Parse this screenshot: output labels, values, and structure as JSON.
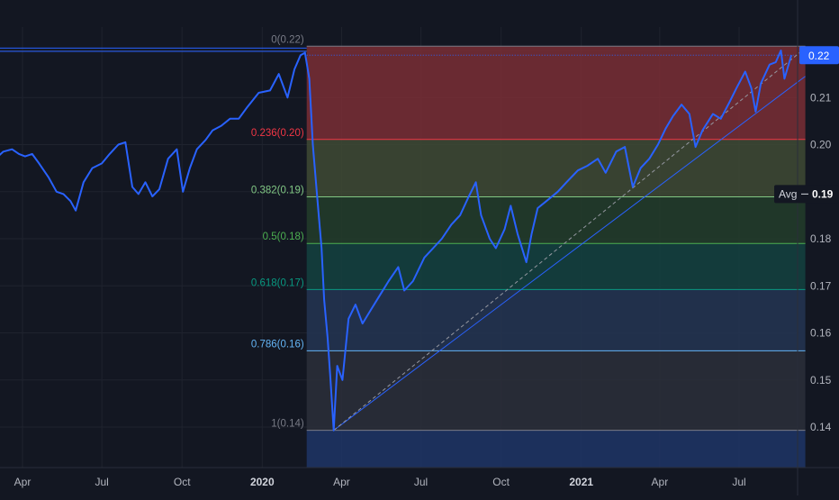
{
  "chart_data": {
    "type": "line",
    "y_axis": {
      "ticks": [
        "0.22",
        "0.21",
        "0.20",
        "0.19",
        "0.18",
        "0.17",
        "0.16",
        "0.15",
        "0.14"
      ],
      "tick_values": [
        0.22,
        0.21,
        0.2,
        0.19,
        0.18,
        0.17,
        0.16,
        0.15,
        0.14
      ],
      "range": [
        0.1325,
        0.2235
      ]
    },
    "x_axis": {
      "ticks": [
        {
          "label": "Apr",
          "date": "2019-04-01",
          "bold": false
        },
        {
          "label": "Jul",
          "date": "2019-07-01",
          "bold": false
        },
        {
          "label": "Oct",
          "date": "2019-10-01",
          "bold": false
        },
        {
          "label": "2020",
          "date": "2020-01-01",
          "bold": true
        },
        {
          "label": "Apr",
          "date": "2020-04-01",
          "bold": false
        },
        {
          "label": "Jul",
          "date": "2020-07-01",
          "bold": false
        },
        {
          "label": "Oct",
          "date": "2020-10-01",
          "bold": false
        },
        {
          "label": "2021",
          "date": "2021-01-01",
          "bold": true
        },
        {
          "label": "Apr",
          "date": "2021-04-01",
          "bold": false
        },
        {
          "label": "Jul",
          "date": "2021-07-01",
          "bold": false
        }
      ]
    },
    "last_price_label": "0.22",
    "last_price": 0.219,
    "avg_label": "Avg",
    "avg_value_label": "0.19",
    "avg_value": 0.1895,
    "fib_levels": [
      {
        "label": "0(0.22)",
        "ratio": 0,
        "value": 0.2209,
        "color": "#787b86",
        "fill": "#7a2e35"
      },
      {
        "label": "0.236(0.20)",
        "ratio": 0.236,
        "value": 0.2011,
        "color": "#f23645",
        "fill": "#3f4a34"
      },
      {
        "label": "0.382(0.19)",
        "ratio": 0.382,
        "value": 0.1889,
        "color": "#81c784",
        "fill": "#233d2a"
      },
      {
        "label": "0.5(0.18)",
        "ratio": 0.5,
        "value": 0.179,
        "color": "#4caf50",
        "fill": "#144240"
      },
      {
        "label": "0.618(0.17)",
        "ratio": 0.618,
        "value": 0.1692,
        "color": "#089981",
        "fill": "#243552"
      },
      {
        "label": "0.786(0.16)",
        "ratio": 0.786,
        "value": 0.1562,
        "color": "#64b5f6",
        "fill": "#2c2f3a"
      },
      {
        "label": "1(0.14)",
        "ratio": 1,
        "value": 0.1393,
        "color": "#787b86",
        "fill": "#1e3566"
      }
    ],
    "series": [
      {
        "color": "#2962ff",
        "points": [
          [
            "2019-01-10",
            0.19
          ],
          [
            "2019-01-20",
            0.192
          ],
          [
            "2019-02-01",
            0.194
          ],
          [
            "2019-02-15",
            0.196
          ],
          [
            "2019-03-01",
            0.197
          ],
          [
            "2019-03-10",
            0.1985
          ],
          [
            "2019-03-20",
            0.199
          ],
          [
            "2019-03-28",
            0.198
          ],
          [
            "2019-04-04",
            0.1975
          ],
          [
            "2019-04-12",
            0.198
          ],
          [
            "2019-04-20",
            0.196
          ],
          [
            "2019-05-01",
            0.193
          ],
          [
            "2019-05-10",
            0.19
          ],
          [
            "2019-05-18",
            0.1895
          ],
          [
            "2019-05-26",
            0.188
          ],
          [
            "2019-06-01",
            0.186
          ],
          [
            "2019-06-10",
            0.192
          ],
          [
            "2019-06-20",
            0.195
          ],
          [
            "2019-07-01",
            0.196
          ],
          [
            "2019-07-10",
            0.198
          ],
          [
            "2019-07-20",
            0.2
          ],
          [
            "2019-07-28",
            0.2005
          ],
          [
            "2019-08-05",
            0.191
          ],
          [
            "2019-08-12",
            0.1895
          ],
          [
            "2019-08-20",
            0.192
          ],
          [
            "2019-08-28",
            0.189
          ],
          [
            "2019-09-05",
            0.1905
          ],
          [
            "2019-09-15",
            0.197
          ],
          [
            "2019-09-25",
            0.199
          ],
          [
            "2019-10-02",
            0.19
          ],
          [
            "2019-10-10",
            0.195
          ],
          [
            "2019-10-18",
            0.199
          ],
          [
            "2019-10-28",
            0.201
          ],
          [
            "2019-11-05",
            0.203
          ],
          [
            "2019-11-15",
            0.204
          ],
          [
            "2019-11-25",
            0.2055
          ],
          [
            "2019-12-05",
            0.2055
          ],
          [
            "2019-12-15",
            0.208
          ],
          [
            "2019-12-28",
            0.211
          ],
          [
            "2020-01-10",
            0.2115
          ],
          [
            "2020-01-20",
            0.215
          ],
          [
            "2020-01-30",
            0.21
          ],
          [
            "2020-02-07",
            0.216
          ],
          [
            "2020-02-14",
            0.219
          ],
          [
            "2020-02-19",
            0.2195
          ],
          [
            "2020-02-24",
            0.214
          ],
          [
            "2020-02-28",
            0.2
          ],
          [
            "2020-03-04",
            0.189
          ],
          [
            "2020-03-09",
            0.178
          ],
          [
            "2020-03-12",
            0.167
          ],
          [
            "2020-03-16",
            0.159
          ],
          [
            "2020-03-19",
            0.151
          ],
          [
            "2020-03-23",
            0.1393
          ],
          [
            "2020-03-27",
            0.153
          ],
          [
            "2020-04-02",
            0.15
          ],
          [
            "2020-04-09",
            0.163
          ],
          [
            "2020-04-17",
            0.166
          ],
          [
            "2020-04-25",
            0.162
          ],
          [
            "2020-05-05",
            0.165
          ],
          [
            "2020-05-15",
            0.168
          ],
          [
            "2020-05-25",
            0.171
          ],
          [
            "2020-06-05",
            0.174
          ],
          [
            "2020-06-12",
            0.169
          ],
          [
            "2020-06-22",
            0.171
          ],
          [
            "2020-07-05",
            0.176
          ],
          [
            "2020-07-15",
            0.178
          ],
          [
            "2020-07-25",
            0.18
          ],
          [
            "2020-08-05",
            0.183
          ],
          [
            "2020-08-15",
            0.185
          ],
          [
            "2020-08-25",
            0.189
          ],
          [
            "2020-09-02",
            0.192
          ],
          [
            "2020-09-08",
            0.185
          ],
          [
            "2020-09-18",
            0.18
          ],
          [
            "2020-09-25",
            0.178
          ],
          [
            "2020-10-05",
            0.182
          ],
          [
            "2020-10-12",
            0.187
          ],
          [
            "2020-10-20",
            0.181
          ],
          [
            "2020-10-30",
            0.175
          ],
          [
            "2020-11-05",
            0.181
          ],
          [
            "2020-11-12",
            0.1865
          ],
          [
            "2020-11-22",
            0.188
          ],
          [
            "2020-12-05",
            0.19
          ],
          [
            "2020-12-15",
            0.192
          ],
          [
            "2020-12-28",
            0.1945
          ],
          [
            "2021-01-08",
            0.1955
          ],
          [
            "2021-01-20",
            0.197
          ],
          [
            "2021-01-29",
            0.194
          ],
          [
            "2021-02-10",
            0.1985
          ],
          [
            "2021-02-20",
            0.1995
          ],
          [
            "2021-03-01",
            0.191
          ],
          [
            "2021-03-10",
            0.195
          ],
          [
            "2021-03-20",
            0.197
          ],
          [
            "2021-03-30",
            0.2
          ],
          [
            "2021-04-08",
            0.2035
          ],
          [
            "2021-04-16",
            0.206
          ],
          [
            "2021-04-26",
            0.2085
          ],
          [
            "2021-05-05",
            0.2065
          ],
          [
            "2021-05-12",
            0.1995
          ],
          [
            "2021-05-20",
            0.203
          ],
          [
            "2021-06-01",
            0.2065
          ],
          [
            "2021-06-10",
            0.2055
          ],
          [
            "2021-06-20",
            0.209
          ],
          [
            "2021-06-28",
            0.212
          ],
          [
            "2021-07-08",
            0.2155
          ],
          [
            "2021-07-15",
            0.212
          ],
          [
            "2021-07-20",
            0.207
          ],
          [
            "2021-07-26",
            0.213
          ],
          [
            "2021-08-05",
            0.217
          ],
          [
            "2021-08-12",
            0.2175
          ],
          [
            "2021-08-18",
            0.22
          ],
          [
            "2021-08-22",
            0.214
          ],
          [
            "2021-08-30",
            0.219
          ]
        ]
      }
    ],
    "trendlines": [
      {
        "from": [
          "2020-03-23",
          0.1393
        ],
        "to": [
          "2021-09-15",
          0.2145
        ],
        "color": "#2962ff",
        "style": "solid"
      },
      {
        "from": [
          "2020-03-23",
          0.1393
        ],
        "to": [
          "2021-09-15",
          0.2205
        ],
        "color": "#9598a1",
        "style": "dashed"
      }
    ],
    "horizontal_lines": [
      {
        "value": 0.2198,
        "color": "#2962ff",
        "from_date": "2019-01-01",
        "to_date": "2020-02-21"
      },
      {
        "value": 0.2205,
        "color": "#2962ff",
        "from_date": "2019-01-01",
        "to_date": "2020-02-21"
      }
    ],
    "fib_start_date": "2020-02-21",
    "fib_end_date": "2021-09-15"
  }
}
